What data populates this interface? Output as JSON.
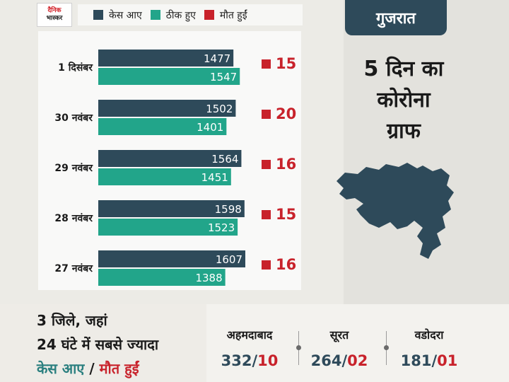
{
  "logo": {
    "line1": "दैनिक",
    "line2": "भास्कर"
  },
  "legend": [
    {
      "label": "केस आए",
      "color": "#2e4a5a"
    },
    {
      "label": "ठीक हुए",
      "color": "#22a58a"
    },
    {
      "label": "मौत हुईं",
      "color": "#c8222b"
    }
  ],
  "region": "गुजरात",
  "headline": [
    "5 दिन का",
    "कोरोना",
    "ग्राफ"
  ],
  "chart_data": {
    "type": "bar",
    "orientation": "horizontal",
    "categories": [
      "1 दिसंबर",
      "30 नवंबर",
      "29 नवंबर",
      "28 नवंबर",
      "27 नवंबर"
    ],
    "series": [
      {
        "name": "केस आए",
        "values": [
          1477,
          1502,
          1564,
          1598,
          1607
        ],
        "color": "#2e4a5a"
      },
      {
        "name": "ठीक हुए",
        "values": [
          1547,
          1401,
          1451,
          1523,
          1388
        ],
        "color": "#22a58a"
      },
      {
        "name": "मौत हुईं",
        "values": [
          15,
          20,
          16,
          15,
          16
        ],
        "color": "#c8222b"
      }
    ],
    "xlim": [
      0,
      1700
    ],
    "legend_position": "top"
  },
  "bottom": {
    "line1": "3 जिले, जहां",
    "line2": "24 घंटे में सबसे ज्यादा",
    "cases_label": "केस आए",
    "slash": "/",
    "deaths_label": "मौत हुईं",
    "cities": [
      {
        "name": "अहमदाबाद",
        "cases": "332",
        "deaths": "10"
      },
      {
        "name": "सूरत",
        "cases": "264",
        "deaths": "02"
      },
      {
        "name": "वडोदरा",
        "cases": "181",
        "deaths": "01"
      }
    ]
  }
}
